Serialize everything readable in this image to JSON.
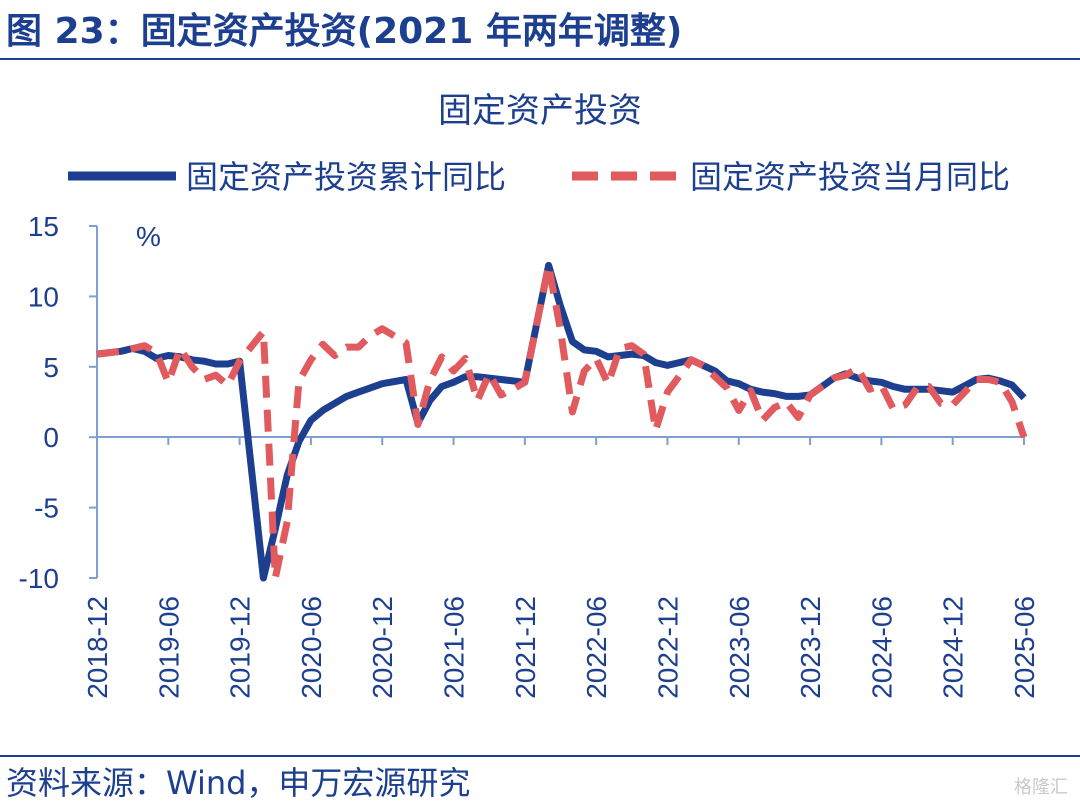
{
  "figure": {
    "title": "图 23：固定资产投资(2021 年两年调整)",
    "source": "资料来源：Wind，申万宏源研究",
    "watermark": "格隆汇"
  },
  "chart_data": {
    "type": "line",
    "title": "固定资产投资",
    "ylabel": "%",
    "xlabel": "",
    "ylim": [
      -10,
      15
    ],
    "yticks": [
      15,
      10,
      5,
      0,
      -5,
      -10
    ],
    "x_tick_labels": [
      "2018-12",
      "2019-06",
      "2019-12",
      "2020-06",
      "2020-12",
      "2021-06",
      "2021-12",
      "2022-06",
      "2022-12",
      "2023-06",
      "2023-12",
      "2024-06",
      "2024-12",
      "2025-06"
    ],
    "legend_position": "top",
    "grid": false,
    "colors": {
      "cumulative": "#1d3f8f",
      "monthly": "#e05a5e",
      "axis": "#7f9fd0",
      "text": "#1d3f8f"
    },
    "series": [
      {
        "name": "固定资产投资累计同比",
        "style": "solid",
        "points": [
          [
            "2018-12",
            5.9
          ],
          [
            "2019-02",
            6.1
          ],
          [
            "2019-03",
            6.3
          ],
          [
            "2019-04",
            6.1
          ],
          [
            "2019-05",
            5.6
          ],
          [
            "2019-06",
            5.8
          ],
          [
            "2019-07",
            5.7
          ],
          [
            "2019-08",
            5.5
          ],
          [
            "2019-09",
            5.4
          ],
          [
            "2019-10",
            5.2
          ],
          [
            "2019-11",
            5.2
          ],
          [
            "2019-12",
            5.4
          ],
          [
            "2020-02",
            -10.0
          ],
          [
            "2020-03",
            -6.5
          ],
          [
            "2020-04",
            -2.7
          ],
          [
            "2020-05",
            -0.3
          ],
          [
            "2020-06",
            1.2
          ],
          [
            "2020-07",
            1.9
          ],
          [
            "2020-08",
            2.4
          ],
          [
            "2020-09",
            2.9
          ],
          [
            "2020-10",
            3.2
          ],
          [
            "2020-11",
            3.5
          ],
          [
            "2020-12",
            3.8
          ],
          [
            "2021-02",
            4.1
          ],
          [
            "2021-03",
            1.0
          ],
          [
            "2021-04",
            2.6
          ],
          [
            "2021-05",
            3.6
          ],
          [
            "2021-06",
            3.9
          ],
          [
            "2021-07",
            4.3
          ],
          [
            "2021-08",
            4.3
          ],
          [
            "2021-09",
            4.2
          ],
          [
            "2021-10",
            4.1
          ],
          [
            "2021-11",
            4.0
          ],
          [
            "2021-12",
            3.9
          ],
          [
            "2022-02",
            12.2
          ],
          [
            "2022-03",
            9.3
          ],
          [
            "2022-04",
            6.8
          ],
          [
            "2022-05",
            6.2
          ],
          [
            "2022-06",
            6.1
          ],
          [
            "2022-07",
            5.7
          ],
          [
            "2022-08",
            5.8
          ],
          [
            "2022-09",
            5.9
          ],
          [
            "2022-10",
            5.8
          ],
          [
            "2022-11",
            5.3
          ],
          [
            "2022-12",
            5.1
          ],
          [
            "2023-02",
            5.5
          ],
          [
            "2023-03",
            5.1
          ],
          [
            "2023-04",
            4.7
          ],
          [
            "2023-05",
            4.0
          ],
          [
            "2023-06",
            3.8
          ],
          [
            "2023-07",
            3.4
          ],
          [
            "2023-08",
            3.2
          ],
          [
            "2023-09",
            3.1
          ],
          [
            "2023-10",
            2.9
          ],
          [
            "2023-11",
            2.9
          ],
          [
            "2023-12",
            3.0
          ],
          [
            "2024-02",
            4.2
          ],
          [
            "2024-03",
            4.5
          ],
          [
            "2024-04",
            4.2
          ],
          [
            "2024-05",
            4.0
          ],
          [
            "2024-06",
            3.9
          ],
          [
            "2024-07",
            3.6
          ],
          [
            "2024-08",
            3.4
          ],
          [
            "2024-09",
            3.4
          ],
          [
            "2024-10",
            3.4
          ],
          [
            "2024-11",
            3.3
          ],
          [
            "2024-12",
            3.2
          ],
          [
            "2025-02",
            4.1
          ],
          [
            "2025-03",
            4.2
          ],
          [
            "2025-04",
            4.0
          ],
          [
            "2025-05",
            3.7
          ],
          [
            "2025-06",
            2.8
          ]
        ]
      },
      {
        "name": "固定资产投资当月同比",
        "style": "dashed",
        "points": [
          [
            "2018-12",
            5.9
          ],
          [
            "2019-02",
            6.1
          ],
          [
            "2019-03",
            6.3
          ],
          [
            "2019-04",
            6.5
          ],
          [
            "2019-05",
            6.0
          ],
          [
            "2019-06",
            3.9
          ],
          [
            "2019-07",
            6.3
          ],
          [
            "2019-08",
            5.0
          ],
          [
            "2019-09",
            4.1
          ],
          [
            "2019-10",
            4.4
          ],
          [
            "2019-11",
            3.7
          ],
          [
            "2019-12",
            5.4
          ],
          [
            "2020-02",
            7.5
          ],
          [
            "2020-03",
            -10.0
          ],
          [
            "2020-04",
            -6.0
          ],
          [
            "2020-05",
            4.0
          ],
          [
            "2020-06",
            5.5
          ],
          [
            "2020-07",
            6.6
          ],
          [
            "2020-08",
            5.8
          ],
          [
            "2020-09",
            6.4
          ],
          [
            "2020-10",
            6.4
          ],
          [
            "2020-11",
            7.2
          ],
          [
            "2020-12",
            7.7
          ],
          [
            "2021-02",
            6.7
          ],
          [
            "2021-03",
            0.9
          ],
          [
            "2021-04",
            4.0
          ],
          [
            "2021-05",
            5.7
          ],
          [
            "2021-06",
            4.7
          ],
          [
            "2021-07",
            5.6
          ],
          [
            "2021-08",
            2.6
          ],
          [
            "2021-09",
            4.5
          ],
          [
            "2021-10",
            3.0
          ],
          [
            "2021-11",
            3.4
          ],
          [
            "2021-12",
            3.9
          ],
          [
            "2022-02",
            12.2
          ],
          [
            "2022-03",
            7.6
          ],
          [
            "2022-04",
            1.8
          ],
          [
            "2022-05",
            4.7
          ],
          [
            "2022-06",
            5.6
          ],
          [
            "2022-07",
            3.8
          ],
          [
            "2022-08",
            6.3
          ],
          [
            "2022-09",
            6.5
          ],
          [
            "2022-10",
            5.9
          ],
          [
            "2022-11",
            0.5
          ],
          [
            "2022-12",
            3.2
          ],
          [
            "2023-02",
            5.5
          ],
          [
            "2023-03",
            5.1
          ],
          [
            "2023-04",
            4.3
          ],
          [
            "2023-05",
            3.5
          ],
          [
            "2023-06",
            1.9
          ],
          [
            "2023-07",
            3.3
          ],
          [
            "2023-08",
            1.2
          ],
          [
            "2023-09",
            2.1
          ],
          [
            "2023-10",
            2.5
          ],
          [
            "2023-11",
            1.4
          ],
          [
            "2023-12",
            3.0
          ],
          [
            "2024-02",
            4.2
          ],
          [
            "2024-03",
            4.4
          ],
          [
            "2024-04",
            4.9
          ],
          [
            "2024-05",
            3.4
          ],
          [
            "2024-06",
            3.7
          ],
          [
            "2024-07",
            2.0
          ],
          [
            "2024-08",
            2.3
          ],
          [
            "2024-09",
            3.5
          ],
          [
            "2024-10",
            3.6
          ],
          [
            "2024-11",
            2.4
          ],
          [
            "2024-12",
            2.3
          ],
          [
            "2025-02",
            4.1
          ],
          [
            "2025-03",
            4.1
          ],
          [
            "2025-04",
            3.9
          ],
          [
            "2025-05",
            2.5
          ],
          [
            "2025-06",
            0.0
          ]
        ]
      }
    ]
  }
}
